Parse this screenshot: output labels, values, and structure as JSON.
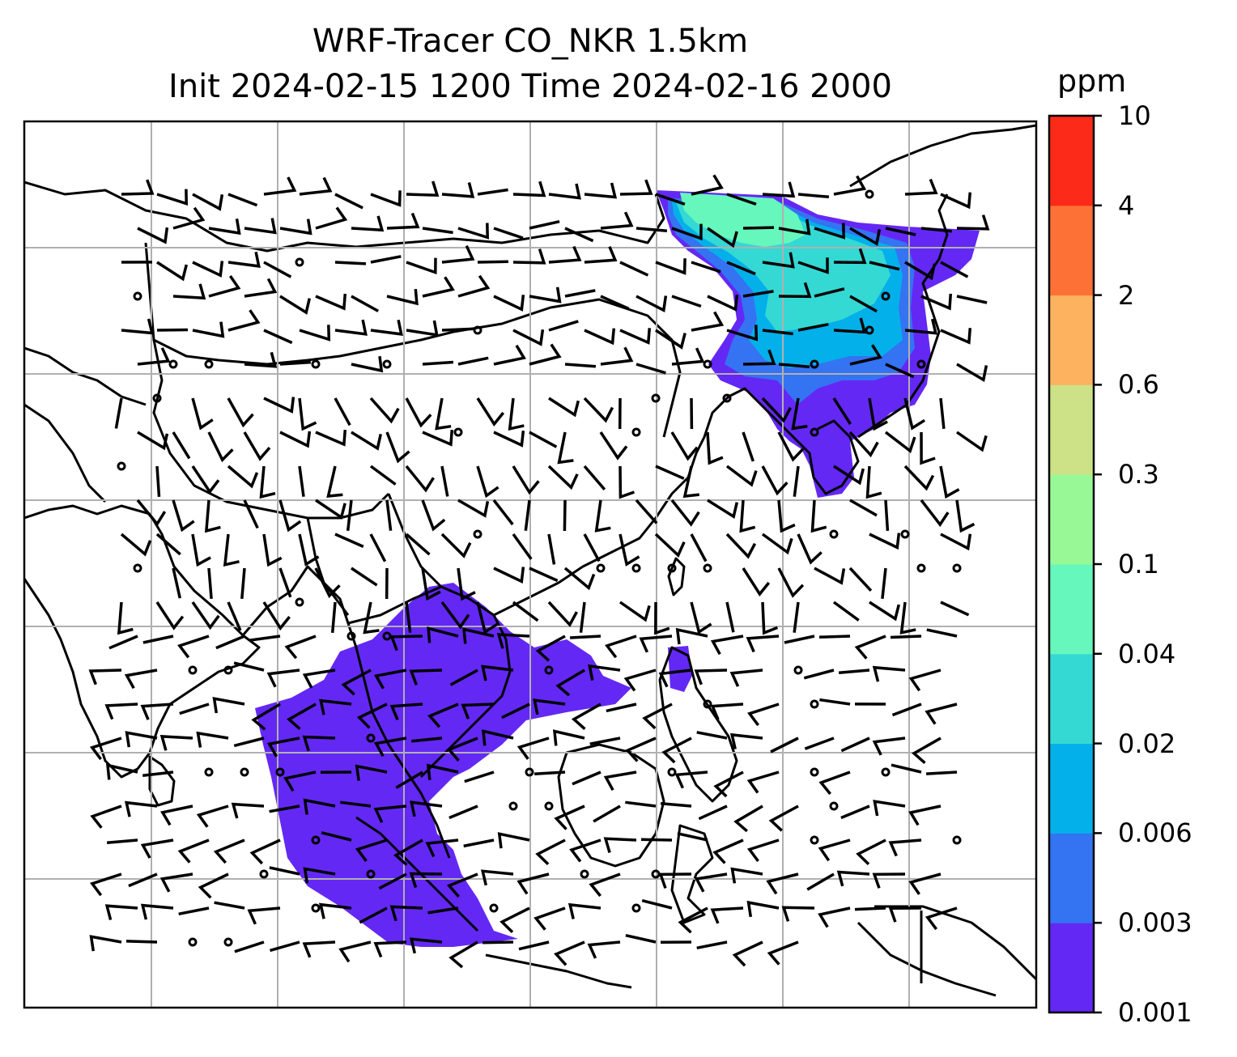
{
  "title_line1": "WRF-Tracer CO_NKR 1.5km",
  "title_line2": "Init 2024-02-15 1200 Time 2024-02-16 2000",
  "colorbar": {
    "unit": "ppm",
    "levels": [
      "0.001",
      "0.003",
      "0.006",
      "0.02",
      "0.04",
      "0.1",
      "0.3",
      "0.6",
      "2",
      "4",
      "10"
    ],
    "colors": [
      "#6428f5",
      "#3473f2",
      "#03b0ea",
      "#34d9d4",
      "#66f7bd",
      "#98f895",
      "#cde287",
      "#fdb25f",
      "#fd7137",
      "#fc2a18"
    ]
  },
  "map": {
    "gridlines": true,
    "coastline_color": "#000000",
    "grid_color": "#b0b0b0",
    "wind_barbs": "black",
    "tracer_regions": [
      "northeast-asia plume",
      "southeast-asia plume"
    ]
  }
}
